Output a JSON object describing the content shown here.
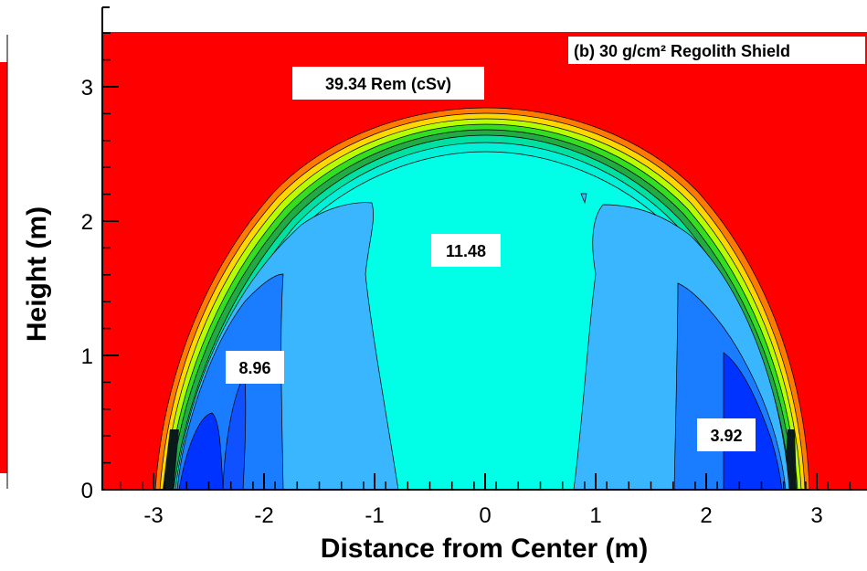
{
  "chart_data": {
    "type": "contour",
    "title": "(b) 30 g/cm² Regolith Shield",
    "xlabel": "Distance from Center (m)",
    "ylabel": "Height (m)",
    "xlim": [
      -3.5,
      3.5
    ],
    "ylim": [
      0,
      3.4
    ],
    "xticks": [
      "-3",
      "-2",
      "-1",
      "0",
      "1",
      "2",
      "3"
    ],
    "yticks": [
      "0",
      "1",
      "2",
      "3"
    ],
    "annotations": [
      {
        "text": "39.34 Rem (cSv)",
        "x": -0.95,
        "y": 3.0
      },
      {
        "text": "11.48",
        "x": 0.05,
        "y": 1.8
      },
      {
        "text": "8.96",
        "x": -1.85,
        "y": 0.9
      },
      {
        "text": "3.92",
        "x": 2.05,
        "y": 0.42
      }
    ],
    "colors": {
      "outside": "#ff0000",
      "level_11_48": "#00ffe6",
      "level_8_96": "#3ab6ff",
      "level_6": "#1a7cff",
      "level_3_92": "#0033ff",
      "dark_band": "#0a1a1a"
    },
    "left_partial_panel_color": "#ff0000"
  }
}
